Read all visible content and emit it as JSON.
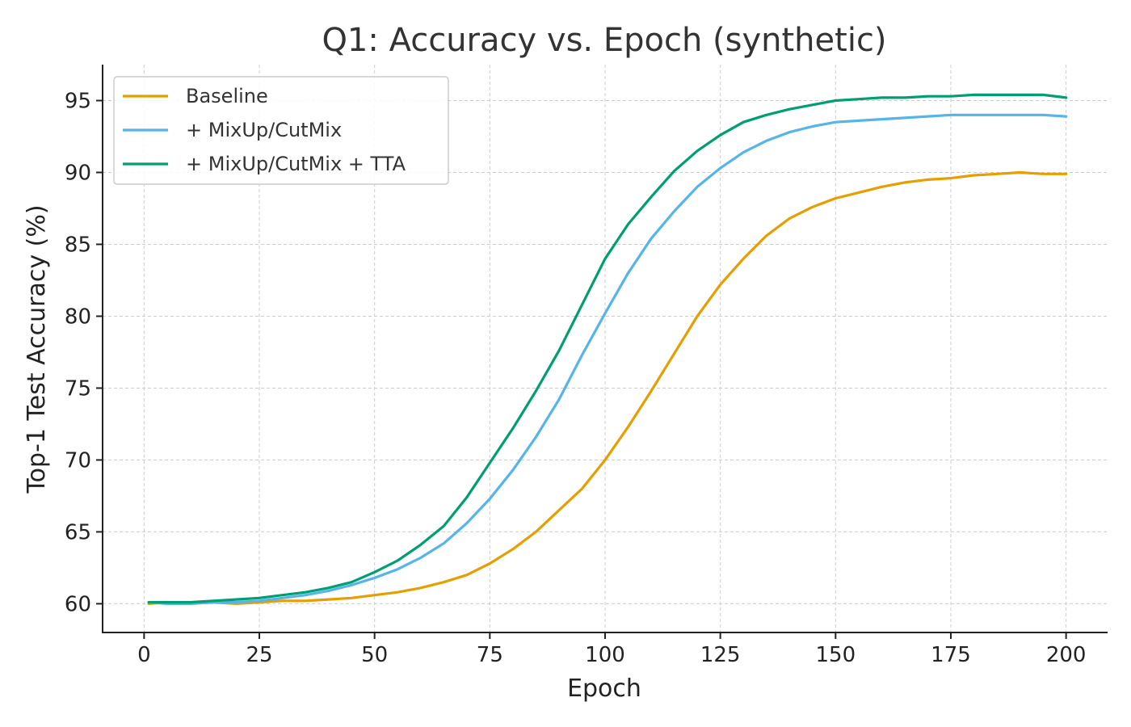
{
  "chart_data": {
    "type": "line",
    "title": "Q1: Accuracy vs. Epoch (synthetic)",
    "xlabel": "Epoch",
    "ylabel": "Top-1 Test Accuracy (%)",
    "xlim": [
      -9,
      209
    ],
    "ylim": [
      58,
      97.5
    ],
    "xticks": [
      0,
      25,
      50,
      75,
      100,
      125,
      150,
      175,
      200
    ],
    "yticks": [
      60,
      65,
      70,
      75,
      80,
      85,
      90,
      95
    ],
    "xtick_labels": [
      "0",
      "25",
      "50",
      "75",
      "100",
      "125",
      "150",
      "175",
      "200"
    ],
    "ytick_labels": [
      "60",
      "65",
      "70",
      "75",
      "80",
      "85",
      "90",
      "95"
    ],
    "grid": true,
    "legend_position": "top-left",
    "x": [
      1,
      5,
      10,
      15,
      20,
      25,
      30,
      35,
      40,
      45,
      50,
      55,
      60,
      65,
      70,
      75,
      80,
      85,
      90,
      95,
      100,
      105,
      110,
      115,
      120,
      125,
      130,
      135,
      140,
      145,
      150,
      155,
      160,
      165,
      170,
      175,
      180,
      185,
      190,
      195,
      200
    ],
    "series": [
      {
        "name": "Baseline",
        "color": "#E69F00",
        "values": [
          60.0,
          60.1,
          60.0,
          60.1,
          60.0,
          60.1,
          60.2,
          60.2,
          60.3,
          60.4,
          60.6,
          60.8,
          61.1,
          61.5,
          62.0,
          62.8,
          63.8,
          65.0,
          66.5,
          68.0,
          70.0,
          72.3,
          74.8,
          77.4,
          80.0,
          82.2,
          84.0,
          85.6,
          86.8,
          87.6,
          88.2,
          88.6,
          89.0,
          89.3,
          89.5,
          89.6,
          89.8,
          89.9,
          90.0,
          89.9,
          89.9
        ]
      },
      {
        "name": "+ MixUp/CutMix",
        "color": "#56B4E9",
        "values": [
          60.1,
          60.0,
          60.0,
          60.1,
          60.1,
          60.2,
          60.4,
          60.6,
          60.9,
          61.3,
          61.8,
          62.4,
          63.2,
          64.2,
          65.6,
          67.3,
          69.3,
          71.6,
          74.2,
          77.3,
          80.2,
          83.0,
          85.4,
          87.3,
          89.0,
          90.3,
          91.4,
          92.2,
          92.8,
          93.2,
          93.5,
          93.6,
          93.7,
          93.8,
          93.9,
          94.0,
          94.0,
          94.0,
          94.0,
          94.0,
          93.9
        ]
      },
      {
        "name": "+ MixUp/CutMix + TTA",
        "color": "#009E73",
        "values": [
          60.1,
          60.1,
          60.1,
          60.2,
          60.3,
          60.4,
          60.6,
          60.8,
          61.1,
          61.5,
          62.2,
          63.0,
          64.1,
          65.4,
          67.4,
          69.8,
          72.2,
          74.8,
          77.6,
          80.8,
          84.0,
          86.4,
          88.3,
          90.1,
          91.5,
          92.6,
          93.5,
          94.0,
          94.4,
          94.7,
          95.0,
          95.1,
          95.2,
          95.2,
          95.3,
          95.3,
          95.4,
          95.4,
          95.4,
          95.4,
          95.2
        ]
      }
    ]
  }
}
